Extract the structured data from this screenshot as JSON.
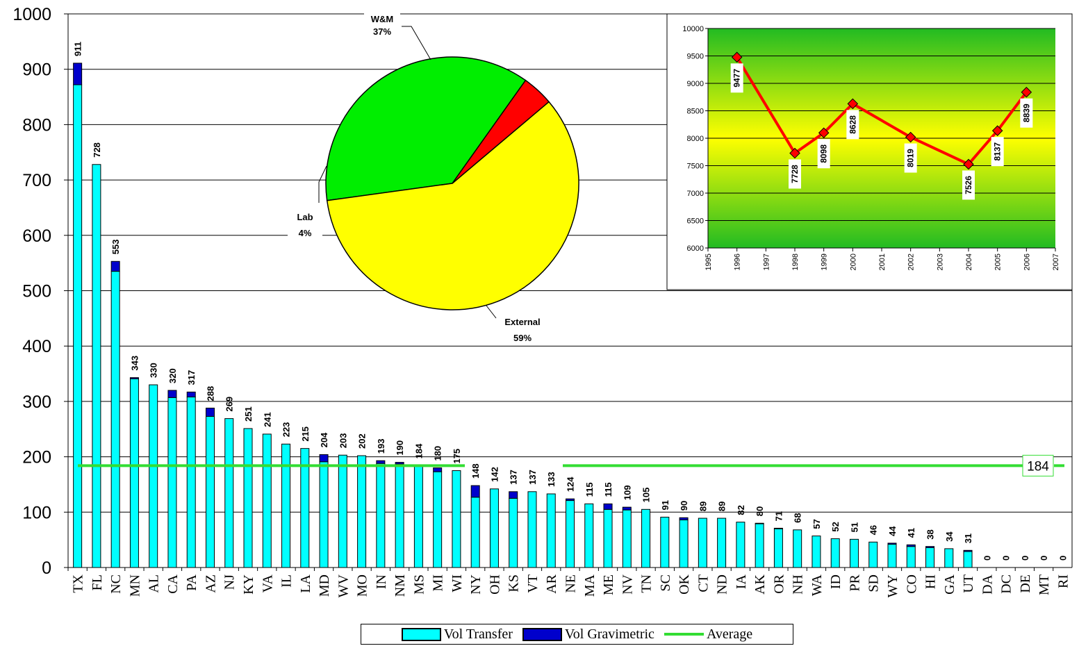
{
  "colors": {
    "vol_transfer": "#00FFFF",
    "vol_gravimetric": "#0000CC",
    "average": "#33DD33",
    "pie_wm": "#00EE00",
    "pie_external": "#FFFF00",
    "pie_lab": "#FF0000",
    "line": "#FF0000"
  },
  "chart_data": [
    {
      "type": "bar",
      "stacked": true,
      "ylim": [
        0,
        1000
      ],
      "yticks": [
        0,
        100,
        200,
        300,
        400,
        500,
        600,
        700,
        800,
        900,
        1000
      ],
      "grid": true,
      "legend_position": "bottom",
      "categories": [
        "TX",
        "FL",
        "NC",
        "MN",
        "AL",
        "CA",
        "PA",
        "AZ",
        "NJ",
        "KY",
        "VA",
        "IL",
        "LA",
        "MD",
        "WV",
        "MO",
        "IN",
        "NM",
        "MS",
        "MI",
        "WI",
        "NY",
        "OH",
        "KS",
        "VT",
        "AR",
        "NE",
        "MA",
        "ME",
        "NV",
        "TN",
        "SC",
        "OK",
        "CT",
        "ND",
        "IA",
        "AK",
        "OR",
        "NH",
        "WA",
        "ID",
        "PR",
        "SD",
        "WY",
        "CO",
        "HI",
        "GA",
        "UT",
        "DA",
        "DC",
        "DE",
        "MT",
        "RI"
      ],
      "totals": [
        911,
        728,
        553,
        343,
        330,
        320,
        317,
        288,
        269,
        251,
        241,
        223,
        215,
        204,
        203,
        202,
        193,
        190,
        184,
        180,
        175,
        148,
        142,
        137,
        137,
        133,
        124,
        115,
        115,
        109,
        105,
        91,
        90,
        89,
        89,
        82,
        80,
        71,
        68,
        57,
        52,
        51,
        46,
        44,
        41,
        38,
        34,
        31,
        0,
        0,
        0,
        0,
        0
      ],
      "series": [
        {
          "name": "Vol Transfer",
          "values": [
            872,
            728,
            535,
            341,
            330,
            307,
            308,
            273,
            269,
            251,
            241,
            223,
            215,
            191,
            203,
            202,
            188,
            187,
            184,
            173,
            175,
            127,
            142,
            125,
            137,
            133,
            121,
            115,
            105,
            104,
            105,
            91,
            86,
            89,
            89,
            82,
            79,
            70,
            68,
            57,
            52,
            51,
            46,
            42,
            38,
            36,
            34,
            29,
            0,
            0,
            0,
            0,
            0
          ]
        },
        {
          "name": "Vol Gravimetric",
          "values": [
            39,
            0,
            18,
            2,
            0,
            13,
            9,
            15,
            0,
            0,
            0,
            0,
            0,
            13,
            0,
            0,
            5,
            3,
            0,
            7,
            0,
            21,
            0,
            12,
            0,
            0,
            3,
            0,
            10,
            5,
            0,
            0,
            4,
            0,
            0,
            0,
            1,
            1,
            0,
            0,
            0,
            0,
            0,
            2,
            3,
            2,
            0,
            2,
            0,
            0,
            0,
            0,
            0
          ]
        },
        {
          "name": "Average",
          "value": 184
        }
      ],
      "average_label": "184"
    },
    {
      "type": "pie",
      "slices": [
        {
          "label": "W&M",
          "pct_label": "37%",
          "value": 37
        },
        {
          "label": "External",
          "pct_label": "59%",
          "value": 59
        },
        {
          "label": "Lab",
          "pct_label": "4%",
          "value": 4
        }
      ]
    },
    {
      "type": "line",
      "xlim": [
        1995,
        2007
      ],
      "xticks": [
        "1995",
        "1996",
        "1997",
        "1998",
        "1999",
        "2000",
        "2001",
        "2002",
        "2003",
        "2004",
        "2005",
        "2006",
        "2007"
      ],
      "ylim": [
        6000,
        10000
      ],
      "yticks": [
        "6000",
        "6500",
        "7000",
        "7500",
        "8000",
        "8500",
        "9000",
        "9500",
        "10000"
      ],
      "grid": true,
      "x": [
        1996,
        1998,
        1999,
        2000,
        2002,
        2004,
        2005,
        2006
      ],
      "y": [
        9477,
        7728,
        8098,
        8628,
        8019,
        7526,
        8137,
        8839
      ],
      "labels": [
        "9477",
        "7728",
        "8098",
        "8628",
        "8019",
        "7526",
        "8137",
        "8839"
      ]
    }
  ],
  "legend": {
    "vol_transfer": "Vol Transfer",
    "vol_gravimetric": "Vol Gravimetric",
    "average": "Average"
  }
}
